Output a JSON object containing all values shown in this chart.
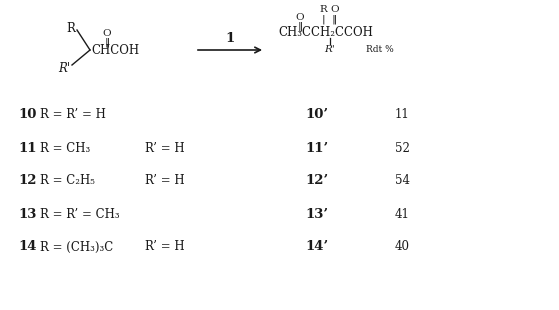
{
  "bg_color": "#ffffff",
  "text_color": "#1a1a1a",
  "rows": [
    {
      "num": "10",
      "left": "R = R’ = H",
      "left2": null,
      "right_num": "10’",
      "yield": "11"
    },
    {
      "num": "11",
      "left": "R = CH₃",
      "left2": "R’ = H",
      "right_num": "11’",
      "yield": "52"
    },
    {
      "num": "12",
      "left": "R = C₂H₅",
      "left2": "R’ = H",
      "right_num": "12’",
      "yield": "54"
    },
    {
      "num": "13",
      "left": "R = R’ = CH₃",
      "left2": null,
      "right_num": "13’",
      "yield": "41"
    },
    {
      "num": "14",
      "left": "R = (CH₃)₃C",
      "left2": "R’ = H",
      "right_num": "14’",
      "yield": "40"
    }
  ],
  "arrow_label": "1",
  "rdt_label": "Rdt %"
}
